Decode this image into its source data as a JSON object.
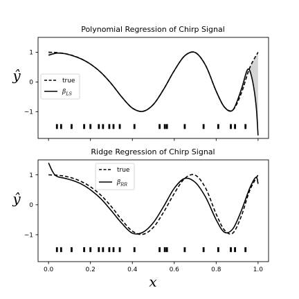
{
  "chart_data": [
    {
      "type": "line",
      "title": "Polynomial Regression of Chirp Signal",
      "xlabel": "",
      "ylabel": "ŷ",
      "xlim": [
        -0.05,
        1.05
      ],
      "ylim": [
        -1.9,
        1.5
      ],
      "yticks": [
        1,
        0,
        -1
      ],
      "yticklabels": [
        "1",
        "0",
        "−1"
      ],
      "xticks": [
        0.0,
        0.2,
        0.4,
        0.6,
        0.8,
        1.0
      ],
      "xticklabels": [],
      "legend": {
        "position": "center-left",
        "entries": [
          "true",
          "β_LS"
        ]
      },
      "shading": "gray fill between true and fitted curves",
      "series": [
        {
          "name": "true",
          "style": "dashed",
          "x": [
            0.0,
            0.04,
            0.08,
            0.12,
            0.16,
            0.2,
            0.25,
            0.3,
            0.35,
            0.4,
            0.45,
            0.5,
            0.55,
            0.6,
            0.65,
            0.7,
            0.75,
            0.8,
            0.84,
            0.88,
            0.92,
            0.96,
            1.0
          ],
          "y": [
            1.0,
            0.988,
            0.951,
            0.878,
            0.763,
            0.601,
            0.319,
            -0.063,
            -0.509,
            -0.879,
            -0.988,
            -0.757,
            -0.238,
            0.378,
            0.88,
            0.99,
            0.551,
            -0.31,
            -0.849,
            -0.942,
            -0.38,
            0.472,
            1.0
          ]
        },
        {
          "name": "β_LS",
          "style": "solid",
          "x": [
            0.0,
            0.04,
            0.08,
            0.12,
            0.16,
            0.2,
            0.25,
            0.3,
            0.35,
            0.4,
            0.45,
            0.5,
            0.55,
            0.6,
            0.65,
            0.7,
            0.75,
            0.8,
            0.84,
            0.88,
            0.92,
            0.95,
            0.97,
            0.99,
            1.0
          ],
          "y": [
            0.9,
            0.97,
            0.95,
            0.87,
            0.76,
            0.6,
            0.32,
            -0.06,
            -0.51,
            -0.88,
            -0.99,
            -0.76,
            -0.24,
            0.38,
            0.88,
            0.99,
            0.55,
            -0.31,
            -0.85,
            -0.94,
            -0.25,
            0.42,
            0.15,
            -0.75,
            -1.8
          ]
        }
      ],
      "sample_x": [
        0.04,
        0.06,
        0.11,
        0.17,
        0.2,
        0.24,
        0.26,
        0.29,
        0.31,
        0.34,
        0.41,
        0.53,
        0.555,
        0.565,
        0.65,
        0.74,
        0.81,
        0.87,
        0.89,
        0.94
      ],
      "sample_y": -1.5
    },
    {
      "type": "line",
      "title": "Ridge Regression of Chirp Signal",
      "xlabel": "x",
      "ylabel": "ŷ",
      "xlim": [
        -0.05,
        1.05
      ],
      "ylim": [
        -1.9,
        1.5
      ],
      "yticks": [
        1,
        0,
        -1
      ],
      "yticklabels": [
        "1",
        "0",
        "−1"
      ],
      "xticks": [
        0.0,
        0.2,
        0.4,
        0.6,
        0.8,
        1.0
      ],
      "xticklabels": [
        "0.0",
        "0.2",
        "0.4",
        "0.6",
        "0.8",
        "1.0"
      ],
      "legend": {
        "position": "upper-left",
        "entries": [
          "true",
          "β_RR"
        ]
      },
      "series": [
        {
          "name": "true",
          "style": "dashed",
          "x": [
            0.0,
            0.04,
            0.08,
            0.12,
            0.16,
            0.2,
            0.25,
            0.3,
            0.35,
            0.4,
            0.45,
            0.5,
            0.55,
            0.6,
            0.65,
            0.7,
            0.75,
            0.8,
            0.84,
            0.88,
            0.92,
            0.96,
            1.0
          ],
          "y": [
            1.0,
            0.988,
            0.951,
            0.878,
            0.763,
            0.601,
            0.319,
            -0.063,
            -0.509,
            -0.879,
            -0.988,
            -0.757,
            -0.238,
            0.378,
            0.88,
            0.99,
            0.551,
            -0.31,
            -0.849,
            -0.942,
            -0.38,
            0.472,
            1.0
          ]
        },
        {
          "name": "β_RR",
          "style": "solid",
          "x": [
            0.0,
            0.02,
            0.04,
            0.08,
            0.12,
            0.16,
            0.2,
            0.25,
            0.3,
            0.35,
            0.4,
            0.45,
            0.5,
            0.55,
            0.6,
            0.65,
            0.7,
            0.75,
            0.8,
            0.84,
            0.88,
            0.92,
            0.96,
            0.99,
            1.0
          ],
          "y": [
            1.4,
            1.1,
            0.95,
            0.88,
            0.8,
            0.68,
            0.5,
            0.2,
            -0.2,
            -0.62,
            -0.95,
            -0.92,
            -0.6,
            -0.05,
            0.55,
            0.88,
            0.75,
            0.25,
            -0.5,
            -0.92,
            -0.8,
            -0.2,
            0.55,
            0.92,
            0.7
          ]
        }
      ],
      "sample_x": [
        0.04,
        0.06,
        0.11,
        0.17,
        0.2,
        0.24,
        0.26,
        0.29,
        0.31,
        0.34,
        0.41,
        0.53,
        0.555,
        0.565,
        0.65,
        0.74,
        0.81,
        0.87,
        0.89,
        0.94
      ],
      "sample_y": -1.5
    }
  ]
}
